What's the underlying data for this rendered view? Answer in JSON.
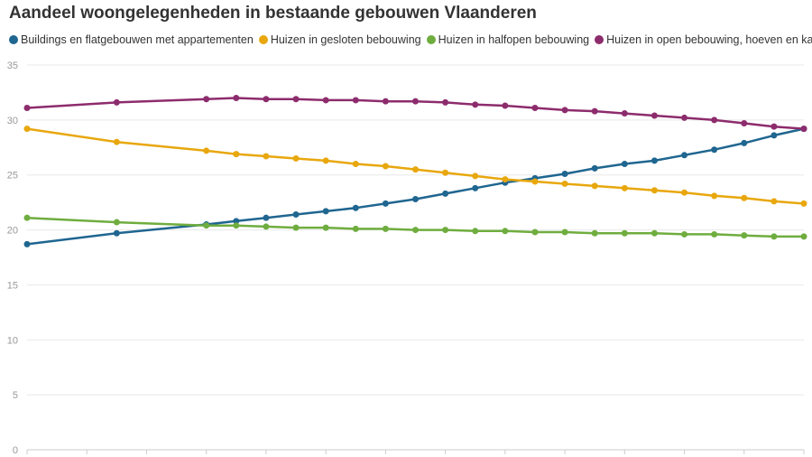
{
  "chart_data": {
    "type": "line",
    "title": "Aandeel woongelegenheden in bestaande gebouwen Vlaanderen",
    "xlabel": "",
    "ylabel": "",
    "ylim": [
      0,
      35
    ],
    "yticks": [
      0,
      5,
      10,
      15,
      20,
      25,
      30,
      35
    ],
    "grid": true,
    "legend_position": "top-left",
    "x_points": 27,
    "series": [
      {
        "name": "Buildings en flatgebouwen met appartementen",
        "color": "#1f6690",
        "values": [
          18.7,
          19.7,
          20.5,
          20.8,
          21.1,
          21.4,
          21.7,
          22.0,
          22.4,
          22.8,
          23.3,
          23.8,
          24.3,
          24.7,
          25.1,
          25.6,
          26.0,
          26.3,
          26.8,
          27.3,
          27.9,
          28.6,
          29.2
        ]
      },
      {
        "name": "Huizen in gesloten bebouwing",
        "color": "#e8a70d",
        "values": [
          29.2,
          28.0,
          27.2,
          26.9,
          26.7,
          26.5,
          26.3,
          26.0,
          25.8,
          25.5,
          25.2,
          24.9,
          24.6,
          24.4,
          24.2,
          24.0,
          23.8,
          23.6,
          23.4,
          23.1,
          22.9,
          22.6,
          22.4
        ]
      },
      {
        "name": "Huizen in halfopen bebouwing",
        "color": "#6fad3f",
        "values": [
          21.1,
          20.7,
          20.4,
          20.4,
          20.3,
          20.2,
          20.2,
          20.1,
          20.1,
          20.0,
          20.0,
          19.9,
          19.9,
          19.8,
          19.8,
          19.7,
          19.7,
          19.7,
          19.6,
          19.6,
          19.5,
          19.4,
          19.4
        ]
      },
      {
        "name": "Huizen in open bebouwing, hoeven en kastelen",
        "color": "#8d2c6d",
        "values": [
          31.1,
          31.6,
          31.9,
          32.0,
          31.9,
          31.9,
          31.8,
          31.8,
          31.7,
          31.7,
          31.6,
          31.4,
          31.3,
          31.1,
          30.9,
          30.8,
          30.6,
          30.4,
          30.2,
          30.0,
          29.7,
          29.4,
          29.2
        ]
      }
    ],
    "x_index": [
      0,
      3,
      6,
      7,
      8,
      9,
      10,
      11,
      12,
      13,
      14,
      15,
      16,
      17,
      18,
      19,
      20,
      21,
      22,
      23,
      24,
      25,
      26
    ]
  }
}
